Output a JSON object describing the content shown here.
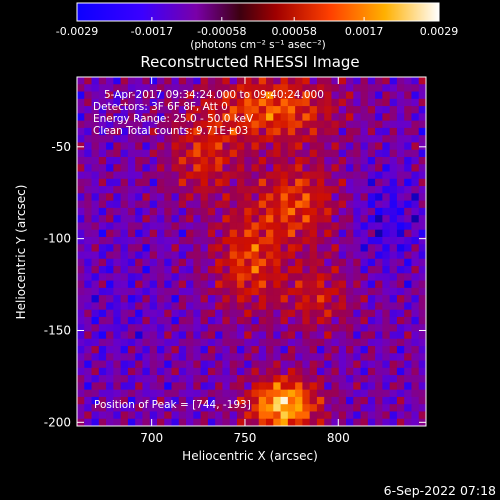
{
  "colorbar": {
    "ticks": [
      "-0.0029",
      "-0.0017",
      "-0.00058",
      "0.00058",
      "0.0017",
      "0.0029"
    ],
    "unit_label": "(photons cm⁻² s⁻¹ asec⁻²)",
    "colormap": [
      "#000000",
      "#1a00ff",
      "#6a00c8",
      "#9b0050",
      "#d01000",
      "#ff6600",
      "#ffc000",
      "#ffffff"
    ]
  },
  "chart_data": {
    "type": "heatmap",
    "title": "Reconstructed RHESSI Image",
    "xlabel": "Heliocentric X (arcsec)",
    "ylabel": "Heliocentric Y (arcsec)",
    "xlim": [
      660,
      847
    ],
    "ylim": [
      -202,
      -12
    ],
    "x_ticks": [
      700,
      750,
      800
    ],
    "y_ticks": [
      -50,
      -100,
      -150,
      -200
    ],
    "info_lines": [
      "5-Apr-2017 09:34:24.000 to 09:40:24.000",
      "Detectors: 3F 6F 8F, Att 0",
      "Energy Range: 25.0 - 50.0 keV",
      "Clean    Total counts: 9.71E+03"
    ],
    "peak_label": "Position of Peak = [744, -193]"
  },
  "footer": {
    "date": "6-Sep-2022 07:18"
  }
}
